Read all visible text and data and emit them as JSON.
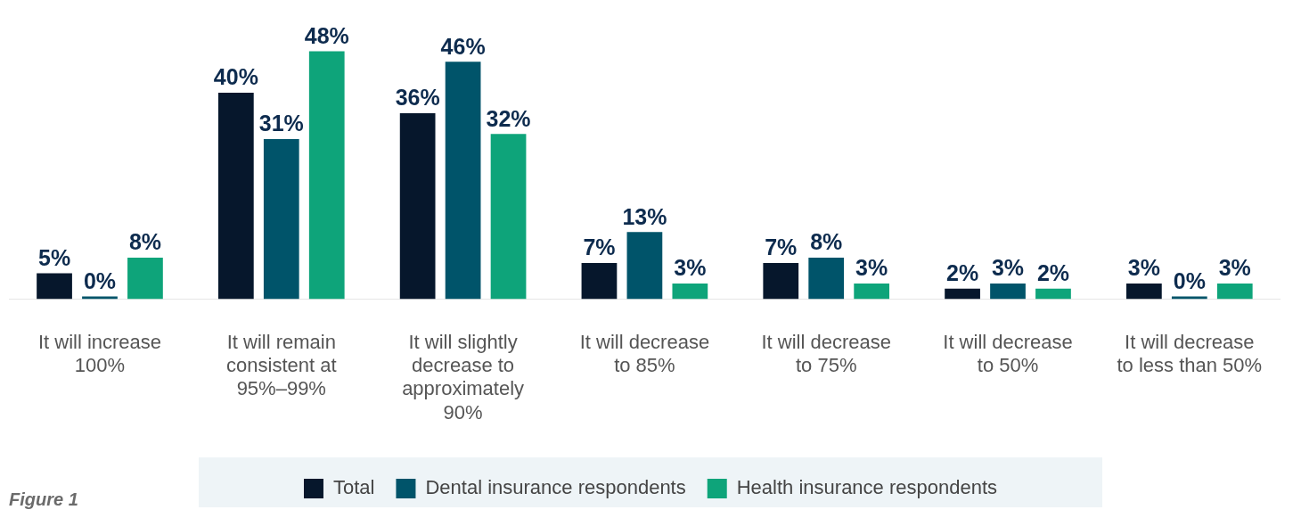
{
  "chart_data": {
    "type": "bar",
    "categories": [
      "It will increase 100%",
      "It will remain consistent at 95%–99%",
      "It will slightly decrease to approximately 90%",
      "It will decrease to 85%",
      "It will decrease to 75%",
      "It will decrease to 50%",
      "It will decrease to less than 50%"
    ],
    "series": [
      {
        "name": "Total",
        "color": "#06172c",
        "values": [
          5,
          40,
          36,
          7,
          7,
          2,
          3
        ],
        "value_labels": [
          "5%",
          "40%",
          "36%",
          "7%",
          "7%",
          "2%",
          "3%"
        ]
      },
      {
        "name": "Dental insurance respondents",
        "color": "#00546a",
        "values": [
          0,
          31,
          46,
          13,
          8,
          3,
          0
        ],
        "value_labels": [
          "0%",
          "31%",
          "46%",
          "13%",
          "8%",
          "3%",
          "0%"
        ]
      },
      {
        "name": "Health insurance respondents",
        "color": "#0ea47a",
        "values": [
          8,
          48,
          32,
          3,
          3,
          2,
          3
        ],
        "value_labels": [
          "8%",
          "48%",
          "32%",
          "3%",
          "3%",
          "2%",
          "3%"
        ]
      }
    ],
    "legend": "bottom",
    "grid": false,
    "annotations": [
      "Figure 1"
    ]
  }
}
